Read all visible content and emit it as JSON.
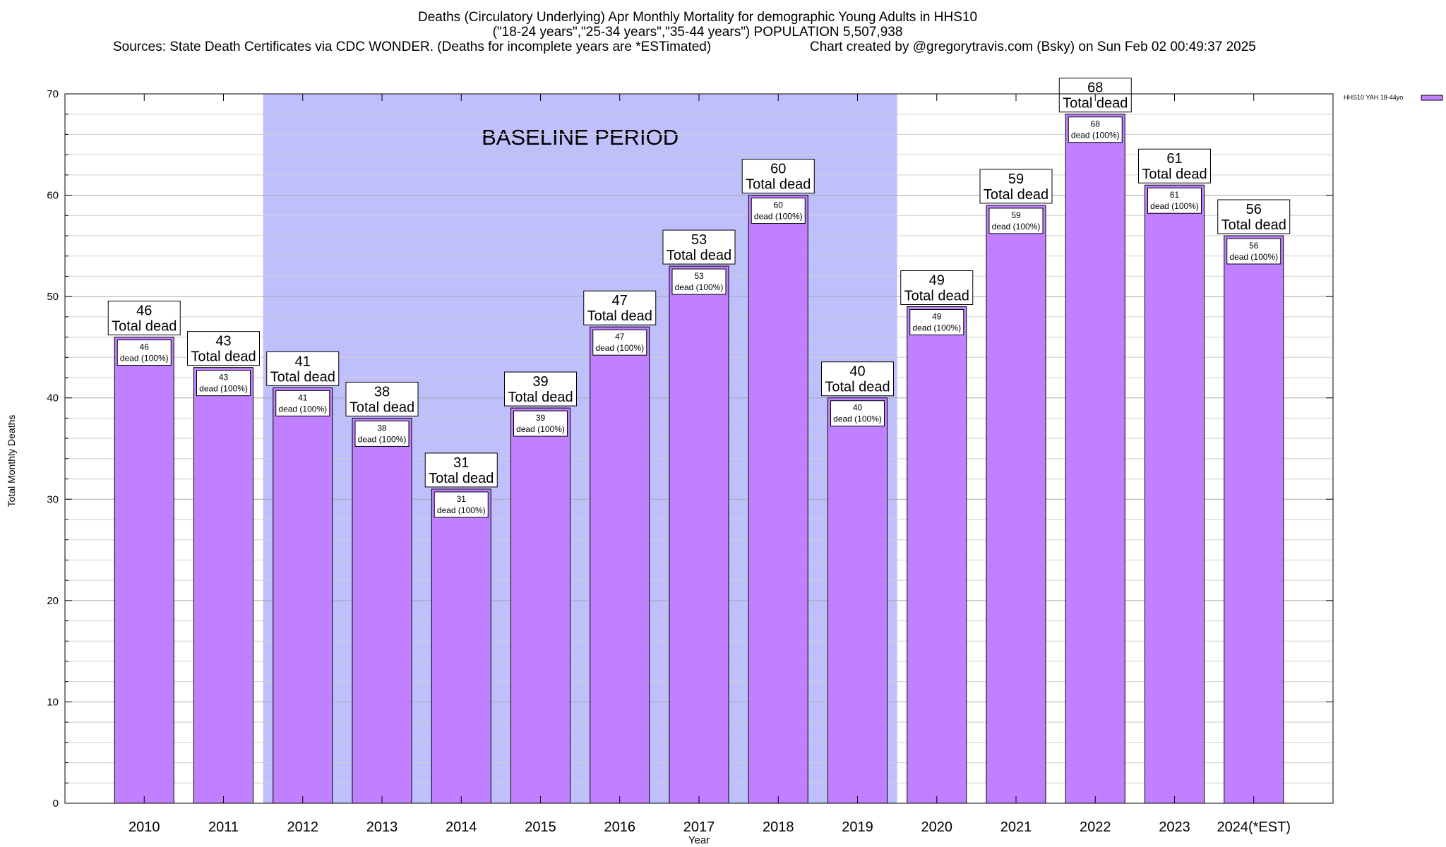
{
  "chart_data": {
    "type": "bar",
    "title_lines": [
      "Deaths (Circulatory Underlying) Apr Monthly Mortality for demographic Young Adults in HHS10",
      "(\"18-24 years\",\"25-34 years\",\"35-44 years\") POPULATION 5,507,938"
    ],
    "sources": "Sources: State Death Certificates via CDC WONDER. (Deaths for incomplete years are *ESTimated)",
    "credit": "Chart created by @gregorytravis.com (Bsky) on Sun Feb 02 00:49:37 2025",
    "xlabel": "Year",
    "ylabel": "Total Monthly Deaths",
    "ylim": [
      0,
      70
    ],
    "yticks": [
      0,
      10,
      20,
      30,
      40,
      50,
      60,
      70
    ],
    "grid": true,
    "categories": [
      "2010",
      "2011",
      "2012",
      "2013",
      "2014",
      "2015",
      "2016",
      "2017",
      "2018",
      "2019",
      "2020",
      "2021",
      "2022",
      "2023",
      "2024(*EST)"
    ],
    "series": [
      {
        "name": "HHS10 YAH 18-44yo",
        "values": [
          46,
          43,
          41,
          38,
          31,
          39,
          47,
          53,
          60,
          40,
          49,
          59,
          68,
          61,
          56
        ],
        "color": "#c080ff"
      }
    ],
    "total_label": "Total dead",
    "inner_label": "dead (100%)",
    "baseline": {
      "label": "BASELINE PERIOD",
      "start": "2012",
      "end": "2019",
      "color": "#bfbffc"
    },
    "legend_position": "top-right"
  }
}
